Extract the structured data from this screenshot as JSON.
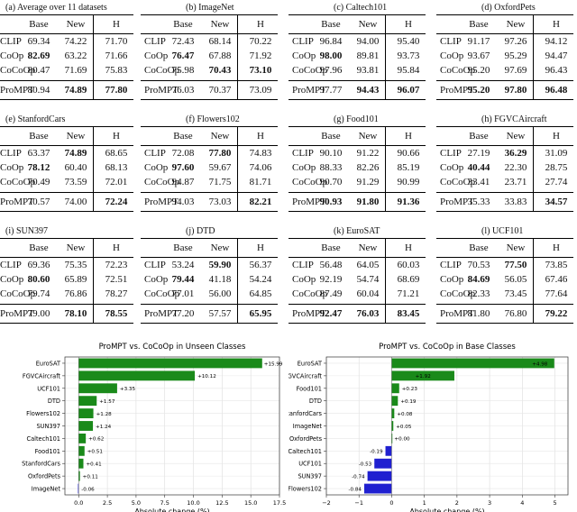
{
  "columns": [
    "Base",
    "New",
    "H"
  ],
  "tables": [
    {
      "caption": "(a) Average over 11 datasets",
      "rows": [
        {
          "method": "CLIP",
          "base": "69.34",
          "new": "74.22",
          "h": "71.70",
          "bold": []
        },
        {
          "method": "CoOp",
          "base": "82.69",
          "new": "63.22",
          "h": "71.66",
          "bold": [
            "base"
          ]
        },
        {
          "method": "CoCoOp",
          "base": "80.47",
          "new": "71.69",
          "h": "75.83",
          "bold": []
        },
        {
          "method": "ProMPT",
          "base": "80.94",
          "new": "74.89",
          "h": "77.80",
          "bold": [
            "new",
            "h"
          ]
        }
      ]
    },
    {
      "caption": "(b) ImageNet",
      "rows": [
        {
          "method": "CLIP",
          "base": "72.43",
          "new": "68.14",
          "h": "70.22",
          "bold": []
        },
        {
          "method": "CoOp",
          "base": "76.47",
          "new": "67.88",
          "h": "71.92",
          "bold": [
            "base"
          ]
        },
        {
          "method": "CoCoOp",
          "base": "75.98",
          "new": "70.43",
          "h": "73.10",
          "bold": [
            "new",
            "h"
          ]
        },
        {
          "method": "ProMPT",
          "base": "76.03",
          "new": "70.37",
          "h": "73.09",
          "bold": []
        }
      ]
    },
    {
      "caption": "(c) Caltech101",
      "rows": [
        {
          "method": "CLIP",
          "base": "96.84",
          "new": "94.00",
          "h": "95.40",
          "bold": []
        },
        {
          "method": "CoOp",
          "base": "98.00",
          "new": "89.81",
          "h": "93.73",
          "bold": [
            "base"
          ]
        },
        {
          "method": "CoCoOp",
          "base": "97.96",
          "new": "93.81",
          "h": "95.84",
          "bold": []
        },
        {
          "method": "ProMPT",
          "base": "97.77",
          "new": "94.43",
          "h": "96.07",
          "bold": [
            "new",
            "h"
          ]
        }
      ]
    },
    {
      "caption": "(d) OxfordPets",
      "rows": [
        {
          "method": "CLIP",
          "base": "91.17",
          "new": "97.26",
          "h": "94.12",
          "bold": []
        },
        {
          "method": "CoOp",
          "base": "93.67",
          "new": "95.29",
          "h": "94.47",
          "bold": []
        },
        {
          "method": "CoCoOp",
          "base": "95.20",
          "new": "97.69",
          "h": "96.43",
          "bold": []
        },
        {
          "method": "ProMPT",
          "base": "95.20",
          "new": "97.80",
          "h": "96.48",
          "bold": [
            "base",
            "new",
            "h"
          ]
        }
      ]
    },
    {
      "caption": "(e) StanfordCars",
      "rows": [
        {
          "method": "CLIP",
          "base": "63.37",
          "new": "74.89",
          "h": "68.65",
          "bold": [
            "new"
          ]
        },
        {
          "method": "CoOp",
          "base": "78.12",
          "new": "60.40",
          "h": "68.13",
          "bold": [
            "base"
          ]
        },
        {
          "method": "CoCoOp",
          "base": "70.49",
          "new": "73.59",
          "h": "72.01",
          "bold": []
        },
        {
          "method": "ProMPT",
          "base": "70.57",
          "new": "74.00",
          "h": "72.24",
          "bold": [
            "h"
          ]
        }
      ]
    },
    {
      "caption": "(f) Flowers102",
      "rows": [
        {
          "method": "CLIP",
          "base": "72.08",
          "new": "77.80",
          "h": "74.83",
          "bold": [
            "new"
          ]
        },
        {
          "method": "CoOp",
          "base": "97.60",
          "new": "59.67",
          "h": "74.06",
          "bold": [
            "base"
          ]
        },
        {
          "method": "CoCoOp",
          "base": "94.87",
          "new": "71.75",
          "h": "81.71",
          "bold": []
        },
        {
          "method": "ProMPT",
          "base": "94.03",
          "new": "73.03",
          "h": "82.21",
          "bold": [
            "h"
          ]
        }
      ]
    },
    {
      "caption": "(g) Food101",
      "rows": [
        {
          "method": "CLIP",
          "base": "90.10",
          "new": "91.22",
          "h": "90.66",
          "bold": []
        },
        {
          "method": "CoOp",
          "base": "88.33",
          "new": "82.26",
          "h": "85.19",
          "bold": []
        },
        {
          "method": "CoCoOp",
          "base": "90.70",
          "new": "91.29",
          "h": "90.99",
          "bold": []
        },
        {
          "method": "ProMPT",
          "base": "90.93",
          "new": "91.80",
          "h": "91.36",
          "bold": [
            "base",
            "new",
            "h"
          ]
        }
      ]
    },
    {
      "caption": "(h) FGVCAircraft",
      "rows": [
        {
          "method": "CLIP",
          "base": "27.19",
          "new": "36.29",
          "h": "31.09",
          "bold": [
            "new"
          ]
        },
        {
          "method": "CoOp",
          "base": "40.44",
          "new": "22.30",
          "h": "28.75",
          "bold": [
            "base"
          ]
        },
        {
          "method": "CoCoOp",
          "base": "33.41",
          "new": "23.71",
          "h": "27.74",
          "bold": []
        },
        {
          "method": "ProMPT",
          "base": "35.33",
          "new": "33.83",
          "h": "34.57",
          "bold": [
            "h"
          ]
        }
      ]
    },
    {
      "caption": "(i) SUN397",
      "rows": [
        {
          "method": "CLIP",
          "base": "69.36",
          "new": "75.35",
          "h": "72.23",
          "bold": []
        },
        {
          "method": "CoOp",
          "base": "80.60",
          "new": "65.89",
          "h": "72.51",
          "bold": [
            "base"
          ]
        },
        {
          "method": "CoCoOp",
          "base": "79.74",
          "new": "76.86",
          "h": "78.27",
          "bold": []
        },
        {
          "method": "ProMPT",
          "base": "79.00",
          "new": "78.10",
          "h": "78.55",
          "bold": [
            "new",
            "h"
          ]
        }
      ]
    },
    {
      "caption": "(j) DTD",
      "rows": [
        {
          "method": "CLIP",
          "base": "53.24",
          "new": "59.90",
          "h": "56.37",
          "bold": [
            "new"
          ]
        },
        {
          "method": "CoOp",
          "base": "79.44",
          "new": "41.18",
          "h": "54.24",
          "bold": [
            "base"
          ]
        },
        {
          "method": "CoCoOp",
          "base": "77.01",
          "new": "56.00",
          "h": "64.85",
          "bold": []
        },
        {
          "method": "ProMPT",
          "base": "77.20",
          "new": "57.57",
          "h": "65.95",
          "bold": [
            "h"
          ]
        }
      ]
    },
    {
      "caption": "(k) EuroSAT",
      "rows": [
        {
          "method": "CLIP",
          "base": "56.48",
          "new": "64.05",
          "h": "60.03",
          "bold": []
        },
        {
          "method": "CoOp",
          "base": "92.19",
          "new": "54.74",
          "h": "68.69",
          "bold": []
        },
        {
          "method": "CoCoOp",
          "base": "87.49",
          "new": "60.04",
          "h": "71.21",
          "bold": []
        },
        {
          "method": "ProMPT",
          "base": "92.47",
          "new": "76.03",
          "h": "83.45",
          "bold": [
            "base",
            "new",
            "h"
          ]
        }
      ]
    },
    {
      "caption": "(l) UCF101",
      "rows": [
        {
          "method": "CLIP",
          "base": "70.53",
          "new": "77.50",
          "h": "73.85",
          "bold": [
            "new"
          ]
        },
        {
          "method": "CoOp",
          "base": "84.69",
          "new": "56.05",
          "h": "67.46",
          "bold": [
            "base"
          ]
        },
        {
          "method": "CoCoOp",
          "base": "82.33",
          "new": "73.45",
          "h": "77.64",
          "bold": []
        },
        {
          "method": "ProMPT",
          "base": "81.80",
          "new": "76.80",
          "h": "79.22",
          "bold": [
            "h"
          ]
        }
      ]
    }
  ],
  "chart_data": [
    {
      "type": "bar",
      "orientation": "horizontal",
      "title": "ProMPT vs. CoCoOp in Unseen Classes",
      "xlabel": "Absolute change (%)",
      "xlim": [
        -1.2,
        17.5
      ],
      "xticks": [
        0,
        2.5,
        5,
        7.5,
        10,
        12.5,
        15,
        17.5
      ],
      "xtick_labels": [
        "0.0",
        "2.5",
        "5.0",
        "7.5",
        "10.0",
        "12.5",
        "15.0",
        "17.5"
      ],
      "categories": [
        "EuroSAT",
        "FGVCAircraft",
        "UCF101",
        "DTD",
        "Flowers102",
        "SUN397",
        "Caltech101",
        "Food101",
        "StanfordCars",
        "OxfordPets",
        "ImageNet"
      ],
      "values": [
        15.99,
        10.12,
        3.35,
        1.57,
        1.28,
        1.24,
        0.62,
        0.51,
        0.41,
        0.11,
        -0.06
      ],
      "labels": [
        "+15.99",
        "+10.12",
        "+3.35",
        "+1.57",
        "+1.28",
        "+1.24",
        "+0.62",
        "+0.51",
        "+0.41",
        "+0.11",
        "-0.06"
      ],
      "positive_color": "#1a8a1a",
      "negative_color": "#2020d0",
      "grid": true
    },
    {
      "type": "bar",
      "orientation": "horizontal",
      "title": "ProMPT vs. CoCoOp in Base Classes",
      "xlabel": "Absolute change (%)",
      "xlim": [
        -2,
        5.4
      ],
      "xticks": [
        -2,
        -1,
        0,
        1,
        2,
        3,
        4,
        5
      ],
      "xtick_labels": [
        "−2",
        "−1",
        "0",
        "1",
        "2",
        "3",
        "4",
        "5"
      ],
      "categories": [
        "EuroSAT",
        "FGVCAircraft",
        "Food101",
        "DTD",
        "StanfordCars",
        "ImageNet",
        "OxfordPets",
        "Caltech101",
        "UCF101",
        "SUN397",
        "Flowers102"
      ],
      "values": [
        4.98,
        1.92,
        0.23,
        0.19,
        0.08,
        0.05,
        0.0,
        -0.19,
        -0.53,
        -0.74,
        -0.84
      ],
      "labels": [
        "+4.98",
        "+1.92",
        "+0.23",
        "+0.19",
        "+0.08",
        "+0.05",
        "+0.00",
        "-0.19",
        "-0.53",
        "-0.74",
        "-0.84"
      ],
      "positive_color": "#1a8a1a",
      "negative_color": "#2020d0",
      "grid": true
    }
  ]
}
